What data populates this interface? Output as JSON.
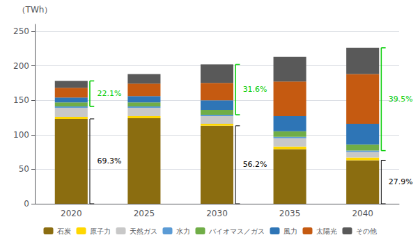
{
  "chart_data": {
    "type": "bar",
    "stacked": true,
    "ylabel": "（TWh）",
    "categories": [
      "2020",
      "2025",
      "2030",
      "2035",
      "2040"
    ],
    "series": [
      {
        "name": "石炭",
        "color": "#8B6D10",
        "values": [
          123,
          124,
          113,
          79,
          63
        ]
      },
      {
        "name": "原子力",
        "color": "#FFD700",
        "values": [
          3,
          3,
          3,
          4,
          4
        ]
      },
      {
        "name": "天然ガス",
        "color": "#C8C8C8",
        "values": [
          13,
          12,
          11,
          12,
          8
        ]
      },
      {
        "name": "水力",
        "color": "#5B9BD5",
        "values": [
          2,
          2,
          2,
          2,
          2
        ]
      },
      {
        "name": "バイオマス／ガス",
        "color": "#70AD47",
        "values": [
          6,
          6,
          7,
          8,
          9
        ]
      },
      {
        "name": "風力",
        "color": "#2E75B6",
        "values": [
          7,
          9,
          14,
          22,
          30
        ]
      },
      {
        "name": "太陽光",
        "color": "#C55A11",
        "values": [
          14,
          18,
          25,
          50,
          72
        ]
      },
      {
        "name": "その他",
        "color": "#595959",
        "values": [
          10,
          14,
          27,
          36,
          38
        ]
      }
    ],
    "ylim": [
      0,
      260
    ],
    "yticks": [
      0,
      50,
      100,
      150,
      200,
      250
    ],
    "grid": true,
    "legend": "bottom",
    "annotations": [
      {
        "text": "69.3%",
        "category": "2020",
        "range": [
          0,
          123
        ],
        "color": "#000000"
      },
      {
        "text": "56.2%",
        "category": "2030",
        "range": [
          0,
          113
        ],
        "color": "#000000"
      },
      {
        "text": "27.9%",
        "category": "2040",
        "range": [
          0,
          63
        ],
        "color": "#000000"
      },
      {
        "text": "22.1%",
        "category": "2020",
        "range": [
          141,
          178
        ],
        "color": "#00CC00"
      },
      {
        "text": "31.6%",
        "category": "2030",
        "range": [
          129,
          202
        ],
        "color": "#00CC00"
      },
      {
        "text": "39.5%",
        "category": "2040",
        "range": [
          77,
          226
        ],
        "color": "#00CC00"
      }
    ]
  }
}
